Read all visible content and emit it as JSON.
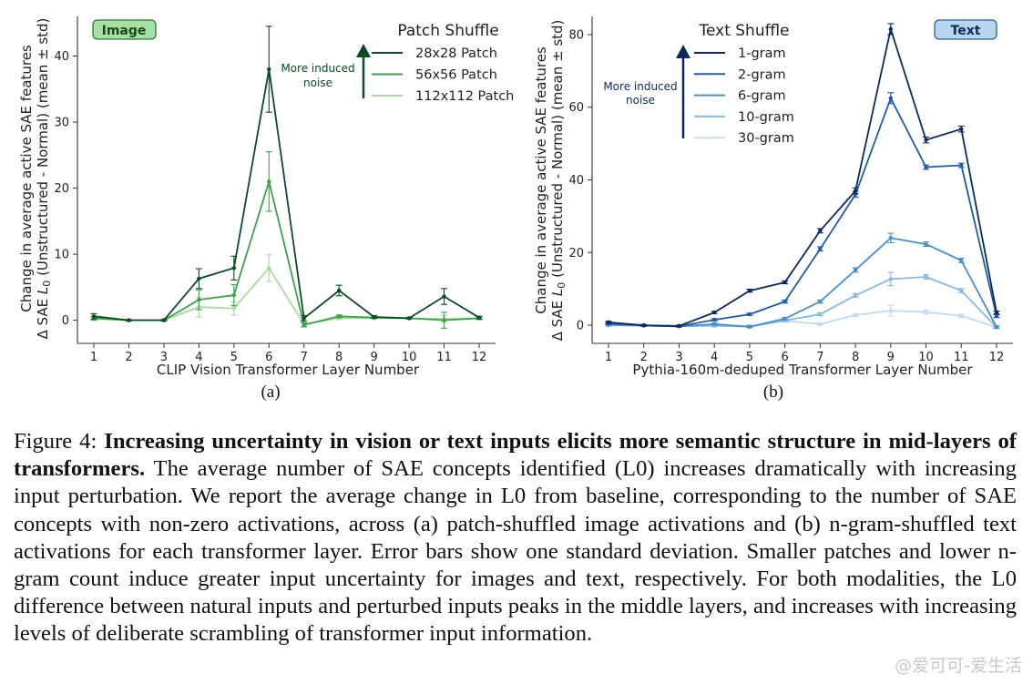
{
  "figure": {
    "subcaption_a": "(a)",
    "subcaption_b": "(b)",
    "caption": {
      "label": "Figure 4:",
      "title": "Increasing uncertainty in vision or text inputs elicits more semantic structure in mid-layers of transformers.",
      "body": "The average number of SAE concepts identified (L0) increases dramatically with increasing input perturbation. We report the average change in L0 from baseline, corresponding to the number of SAE concepts with non-zero activations, across (a) patch-shuffled image activations and (b) n-gram-shuffled text activations for each transformer layer. Error bars show one standard deviation. Smaller patches and lower n-gram count induce greater input uncertainty for images and text, respectively. For both modalities, the L0 difference between natural inputs and perturbed inputs peaks in the middle layers, and increases with increasing levels of deliberate scrambling of transformer input information."
    },
    "watermark": "@爱可可-爱生活"
  },
  "chart_data": [
    {
      "type": "line",
      "badge": "Image",
      "badge_color": "#a9dfa6",
      "legend_title": "Patch Shuffle",
      "legend_placement": "top-right",
      "annotation": "More induced noise",
      "arrow_color": "#0b4a22",
      "xlabel": "CLIP Vision Transformer Layer Number",
      "ylabel_line1": "Change in average active SAE features",
      "ylabel_line2_a": "Δ SAE ",
      "ylabel_line2_b": "L",
      "ylabel_line2_c": "0",
      "ylabel_line2_d": " (Unstructured - Normal) (mean ± std)",
      "x": [
        1,
        2,
        3,
        4,
        5,
        6,
        7,
        8,
        9,
        10,
        11,
        12
      ],
      "x_ticks": [
        "1",
        "2",
        "3",
        "4",
        "5",
        "6",
        "7",
        "8",
        "9",
        "10",
        "11",
        "12"
      ],
      "y_ticks": [
        "0",
        "10",
        "20",
        "30",
        "40"
      ],
      "y_tick_values": [
        0,
        10,
        20,
        30,
        40
      ],
      "ylim": [
        -3.5,
        46
      ],
      "series": [
        {
          "name": "28x28 Patch",
          "color": "#0e4a24",
          "values": [
            0.6,
            0.0,
            0.0,
            6.3,
            7.9,
            38.0,
            0.3,
            4.5,
            0.5,
            0.3,
            3.6,
            0.4
          ],
          "std": [
            0.4,
            0.1,
            0.1,
            1.5,
            1.8,
            6.5,
            0.4,
            0.8,
            0.2,
            0.1,
            1.2,
            0.2
          ]
        },
        {
          "name": "56x56 Patch",
          "color": "#3f9f4f",
          "values": [
            0.3,
            0.0,
            0.0,
            3.1,
            3.8,
            21.0,
            -0.7,
            0.6,
            0.4,
            0.3,
            0.0,
            0.3
          ],
          "std": [
            0.3,
            0.1,
            0.1,
            1.5,
            1.6,
            4.5,
            0.3,
            0.2,
            0.1,
            0.1,
            1.2,
            0.2
          ]
        },
        {
          "name": "112x112 Patch",
          "color": "#a9daa0",
          "values": [
            0.2,
            0.0,
            0.0,
            2.0,
            1.8,
            7.9,
            -0.6,
            0.3,
            0.3,
            0.3,
            0.2,
            0.3
          ],
          "std": [
            0.2,
            0.1,
            0.1,
            1.5,
            1.0,
            2.0,
            0.3,
            0.2,
            0.1,
            0.1,
            0.5,
            0.2
          ]
        }
      ]
    },
    {
      "type": "line",
      "badge": "Text",
      "badge_color": "#b8d5ef",
      "legend_title": "Text Shuffle",
      "legend_placement": "top-left",
      "annotation": "More induced noise",
      "arrow_color": "#0d2a5c",
      "xlabel": "Pythia-160m-deduped Transformer Layer Number",
      "ylabel_line1": "Change in average active SAE features",
      "ylabel_line2_a": "Δ SAE ",
      "ylabel_line2_b": "L",
      "ylabel_line2_c": "0",
      "ylabel_line2_d": " (Unstructured - Normal) (mean ± std)",
      "x": [
        1,
        2,
        3,
        4,
        5,
        6,
        7,
        8,
        9,
        10,
        11,
        12
      ],
      "x_ticks": [
        "1",
        "2",
        "3",
        "4",
        "5",
        "6",
        "7",
        "8",
        "9",
        "10",
        "11",
        "12"
      ],
      "y_ticks": [
        "0",
        "20",
        "40",
        "60",
        "80"
      ],
      "y_tick_values": [
        0,
        20,
        40,
        60,
        80
      ],
      "ylim": [
        -5,
        85
      ],
      "series": [
        {
          "name": "1-gram",
          "color": "#0d2a5c",
          "values": [
            0.8,
            0.0,
            -0.2,
            3.5,
            9.5,
            11.8,
            26.0,
            37.0,
            81.5,
            51.0,
            54.0,
            3.5
          ],
          "std": [
            0.3,
            0.2,
            0.2,
            0.3,
            0.4,
            0.4,
            0.6,
            0.8,
            1.5,
            0.8,
            0.8,
            0.4
          ]
        },
        {
          "name": "2-gram",
          "color": "#1f5ba6",
          "values": [
            0.5,
            -0.1,
            -0.3,
            1.5,
            3.0,
            6.5,
            21.0,
            36.0,
            62.5,
            43.5,
            44.0,
            2.5
          ],
          "std": [
            0.3,
            0.2,
            0.2,
            0.3,
            0.3,
            0.4,
            0.6,
            0.8,
            1.5,
            0.6,
            0.6,
            0.4
          ]
        },
        {
          "name": "6-gram",
          "color": "#4c8fc6",
          "values": [
            0.2,
            -0.1,
            -0.3,
            0.3,
            -0.4,
            1.8,
            6.5,
            15.2,
            24.0,
            22.3,
            17.8,
            -0.5
          ],
          "std": [
            0.2,
            0.2,
            0.2,
            0.3,
            0.3,
            0.3,
            0.4,
            0.6,
            1.3,
            0.6,
            0.6,
            0.3
          ]
        },
        {
          "name": "10-gram",
          "color": "#89b9de",
          "values": [
            0.0,
            -0.1,
            -0.3,
            -0.1,
            -0.4,
            1.3,
            3.0,
            8.2,
            12.7,
            13.3,
            9.5,
            -0.5
          ],
          "std": [
            0.2,
            0.2,
            0.2,
            0.3,
            0.3,
            0.3,
            0.4,
            0.5,
            1.8,
            0.6,
            0.6,
            0.3
          ]
        },
        {
          "name": "30-gram",
          "color": "#c2daef",
          "values": [
            -0.1,
            -0.1,
            -0.2,
            -0.2,
            -0.3,
            1.2,
            0.3,
            2.8,
            4.0,
            3.6,
            2.6,
            -0.6
          ],
          "std": [
            0.2,
            0.2,
            0.2,
            0.3,
            0.3,
            0.3,
            0.3,
            0.4,
            1.5,
            0.5,
            0.4,
            0.3
          ]
        }
      ]
    }
  ]
}
